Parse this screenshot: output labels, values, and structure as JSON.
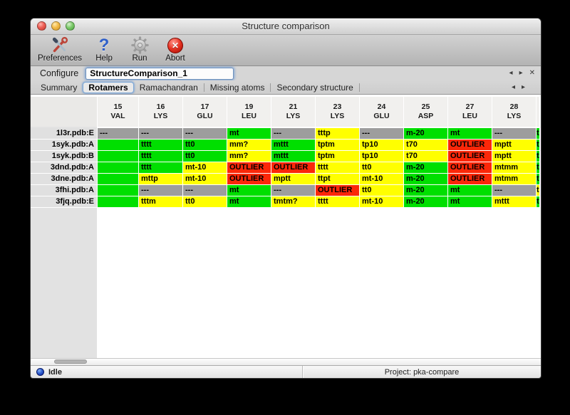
{
  "window": {
    "title": "Structure comparison"
  },
  "toolbar": {
    "items": [
      {
        "label": "Preferences",
        "icon": "tools-icon"
      },
      {
        "label": "Help",
        "icon": "help-icon"
      },
      {
        "label": "Run",
        "icon": "gear-icon"
      },
      {
        "label": "Abort",
        "icon": "abort-icon"
      }
    ]
  },
  "configure": {
    "label": "Configure",
    "value": "StructureComparison_1",
    "nav": {
      "back": "◂",
      "forward": "▸",
      "close": "✕"
    }
  },
  "tabs": {
    "items": [
      {
        "label": "Summary",
        "selected": false
      },
      {
        "label": "Rotamers",
        "selected": true
      },
      {
        "label": "Ramachandran",
        "selected": false
      },
      {
        "label": "Missing atoms",
        "selected": false
      },
      {
        "label": "Secondary structure",
        "selected": false
      }
    ],
    "nav": {
      "back": "◂",
      "forward": "▸"
    }
  },
  "colors": {
    "green": "#00df00",
    "yellow": "#ffff00",
    "red": "#fb2709",
    "gray": "#9d9d9d",
    "traffic_red": "#ee5f55",
    "traffic_yellow": "#f3bb49",
    "traffic_green": "#7ecb6c"
  },
  "table": {
    "columns": [
      {
        "num": "15",
        "res": "VAL"
      },
      {
        "num": "16",
        "res": "LYS"
      },
      {
        "num": "17",
        "res": "GLU"
      },
      {
        "num": "19",
        "res": "LEU"
      },
      {
        "num": "21",
        "res": "LYS"
      },
      {
        "num": "23",
        "res": "LYS"
      },
      {
        "num": "24",
        "res": "GLU"
      },
      {
        "num": "25",
        "res": "ASP"
      },
      {
        "num": "27",
        "res": "LEU"
      },
      {
        "num": "28",
        "res": "LYS"
      }
    ],
    "rows": [
      {
        "label": "1l3r.pdb:E",
        "sliver": "green",
        "cells": [
          {
            "t": "---",
            "c": "gray"
          },
          {
            "t": "---",
            "c": "gray"
          },
          {
            "t": "---",
            "c": "gray"
          },
          {
            "t": "mt",
            "c": "green"
          },
          {
            "t": "---",
            "c": "gray"
          },
          {
            "t": "tttp",
            "c": "yellow"
          },
          {
            "t": "---",
            "c": "gray"
          },
          {
            "t": "m-20",
            "c": "green"
          },
          {
            "t": "mt",
            "c": "green"
          },
          {
            "t": "---",
            "c": "gray"
          }
        ]
      },
      {
        "label": "1syk.pdb:A",
        "sliver": "green",
        "cells": [
          {
            "t": "t",
            "c": "green",
            "clip": true
          },
          {
            "t": "tttt",
            "c": "green"
          },
          {
            "t": "tt0",
            "c": "green"
          },
          {
            "t": "mm?",
            "c": "yellow"
          },
          {
            "t": "mttt",
            "c": "green"
          },
          {
            "t": "tptm",
            "c": "yellow"
          },
          {
            "t": "tp10",
            "c": "yellow"
          },
          {
            "t": "t70",
            "c": "yellow"
          },
          {
            "t": "OUTLIER",
            "c": "red"
          },
          {
            "t": "mptt",
            "c": "yellow"
          }
        ]
      },
      {
        "label": "1syk.pdb:B",
        "sliver": "green",
        "cells": [
          {
            "t": "t",
            "c": "green",
            "clip": true
          },
          {
            "t": "tttt",
            "c": "green"
          },
          {
            "t": "tt0",
            "c": "green"
          },
          {
            "t": "mm?",
            "c": "yellow"
          },
          {
            "t": "mttt",
            "c": "green"
          },
          {
            "t": "tptm",
            "c": "yellow"
          },
          {
            "t": "tp10",
            "c": "yellow"
          },
          {
            "t": "t70",
            "c": "yellow"
          },
          {
            "t": "OUTLIER",
            "c": "red"
          },
          {
            "t": "mptt",
            "c": "yellow"
          }
        ]
      },
      {
        "label": "3dnd.pdb:A",
        "sliver": "green",
        "cells": [
          {
            "t": "t",
            "c": "green",
            "clip": true
          },
          {
            "t": "tttt",
            "c": "green"
          },
          {
            "t": "mt-10",
            "c": "yellow"
          },
          {
            "t": "OUTLIER",
            "c": "red"
          },
          {
            "t": "OUTLIER",
            "c": "red"
          },
          {
            "t": "tttt",
            "c": "yellow"
          },
          {
            "t": "tt0",
            "c": "yellow"
          },
          {
            "t": "m-20",
            "c": "green"
          },
          {
            "t": "OUTLIER",
            "c": "red"
          },
          {
            "t": "mtmm",
            "c": "yellow"
          }
        ]
      },
      {
        "label": "3dne.pdb:A",
        "sliver": "green",
        "cells": [
          {
            "t": "t",
            "c": "green",
            "clip": true
          },
          {
            "t": "mttp",
            "c": "yellow"
          },
          {
            "t": "mt-10",
            "c": "yellow"
          },
          {
            "t": "OUTLIER",
            "c": "red"
          },
          {
            "t": "mptt",
            "c": "yellow"
          },
          {
            "t": "ttpt",
            "c": "yellow"
          },
          {
            "t": "mt-10",
            "c": "yellow"
          },
          {
            "t": "m-20",
            "c": "green"
          },
          {
            "t": "OUTLIER",
            "c": "red"
          },
          {
            "t": "mtmm",
            "c": "yellow"
          }
        ]
      },
      {
        "label": "3fhi.pdb:A",
        "sliver": "yellow",
        "cells": [
          {
            "t": "t",
            "c": "green",
            "clip": true
          },
          {
            "t": "---",
            "c": "gray"
          },
          {
            "t": "---",
            "c": "gray"
          },
          {
            "t": "mt",
            "c": "green"
          },
          {
            "t": "---",
            "c": "gray"
          },
          {
            "t": "OUTLIER",
            "c": "red"
          },
          {
            "t": "tt0",
            "c": "yellow"
          },
          {
            "t": "m-20",
            "c": "green"
          },
          {
            "t": "mt",
            "c": "green"
          },
          {
            "t": "---",
            "c": "gray"
          }
        ]
      },
      {
        "label": "3fjq.pdb:E",
        "sliver": "green",
        "cells": [
          {
            "t": "t",
            "c": "green",
            "clip": true
          },
          {
            "t": "tttm",
            "c": "yellow"
          },
          {
            "t": "tt0",
            "c": "yellow"
          },
          {
            "t": "mt",
            "c": "green"
          },
          {
            "t": "tmtm?",
            "c": "yellow"
          },
          {
            "t": "tttt",
            "c": "yellow"
          },
          {
            "t": "mt-10",
            "c": "yellow"
          },
          {
            "t": "m-20",
            "c": "green"
          },
          {
            "t": "mt",
            "c": "green"
          },
          {
            "t": "mttt",
            "c": "yellow"
          }
        ]
      }
    ]
  },
  "status": {
    "state": "Idle",
    "project": "Project: pka-compare"
  }
}
